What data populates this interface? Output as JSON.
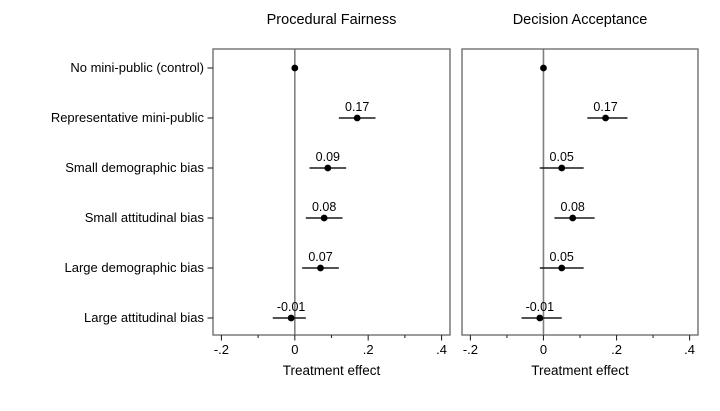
{
  "chart_data": {
    "type": "scatter",
    "subtype": "coefficient-dot-and-whisker",
    "categories": [
      "No mini-public (control)",
      "Representative mini-public",
      "Small demographic bias",
      "Small attitudinal bias",
      "Large demographic bias",
      "Large attitudinal bias"
    ],
    "xlabel": "Treatment effect",
    "xlim": [
      -0.223,
      0.423
    ],
    "xticks": [
      -0.2,
      0,
      0.2,
      0.4
    ],
    "xtick_labels": [
      "-.2",
      "0",
      ".2",
      ".4"
    ],
    "xticks_minor": [
      -0.1,
      0.1,
      0.3
    ],
    "zero_line": 0,
    "grid": false,
    "legend": null,
    "panels": [
      {
        "title": "Procedural Fairness",
        "series": [
          {
            "category": "No mini-public (control)",
            "value": 0.0,
            "ci_low": 0.0,
            "ci_high": 0.0,
            "label": null
          },
          {
            "category": "Representative mini-public",
            "value": 0.17,
            "ci_low": 0.12,
            "ci_high": 0.22,
            "label": "0.17"
          },
          {
            "category": "Small demographic bias",
            "value": 0.09,
            "ci_low": 0.04,
            "ci_high": 0.14,
            "label": "0.09"
          },
          {
            "category": "Small attitudinal bias",
            "value": 0.08,
            "ci_low": 0.03,
            "ci_high": 0.13,
            "label": "0.08"
          },
          {
            "category": "Large demographic bias",
            "value": 0.07,
            "ci_low": 0.02,
            "ci_high": 0.12,
            "label": "0.07"
          },
          {
            "category": "Large attitudinal bias",
            "value": -0.01,
            "ci_low": -0.06,
            "ci_high": 0.03,
            "label": "-0.01"
          }
        ]
      },
      {
        "title": "Decision Acceptance",
        "series": [
          {
            "category": "No mini-public (control)",
            "value": 0.0,
            "ci_low": 0.0,
            "ci_high": 0.0,
            "label": null
          },
          {
            "category": "Representative mini-public",
            "value": 0.17,
            "ci_low": 0.12,
            "ci_high": 0.23,
            "label": "0.17"
          },
          {
            "category": "Small demographic bias",
            "value": 0.05,
            "ci_low": -0.01,
            "ci_high": 0.11,
            "label": "0.05"
          },
          {
            "category": "Small attitudinal bias",
            "value": 0.08,
            "ci_low": 0.03,
            "ci_high": 0.14,
            "label": "0.08"
          },
          {
            "category": "Large demographic bias",
            "value": 0.05,
            "ci_low": -0.01,
            "ci_high": 0.11,
            "label": "0.05"
          },
          {
            "category": "Large attitudinal bias",
            "value": -0.01,
            "ci_low": -0.06,
            "ci_high": 0.05,
            "label": "-0.01"
          }
        ]
      }
    ],
    "colors": {
      "marker": "#000000",
      "ci_line": "#1a1a1a",
      "panel_border": "#707070",
      "zero_line": "#808080",
      "tick": "#2a2a2a",
      "text": "#000000",
      "background": "#ffffff"
    }
  }
}
